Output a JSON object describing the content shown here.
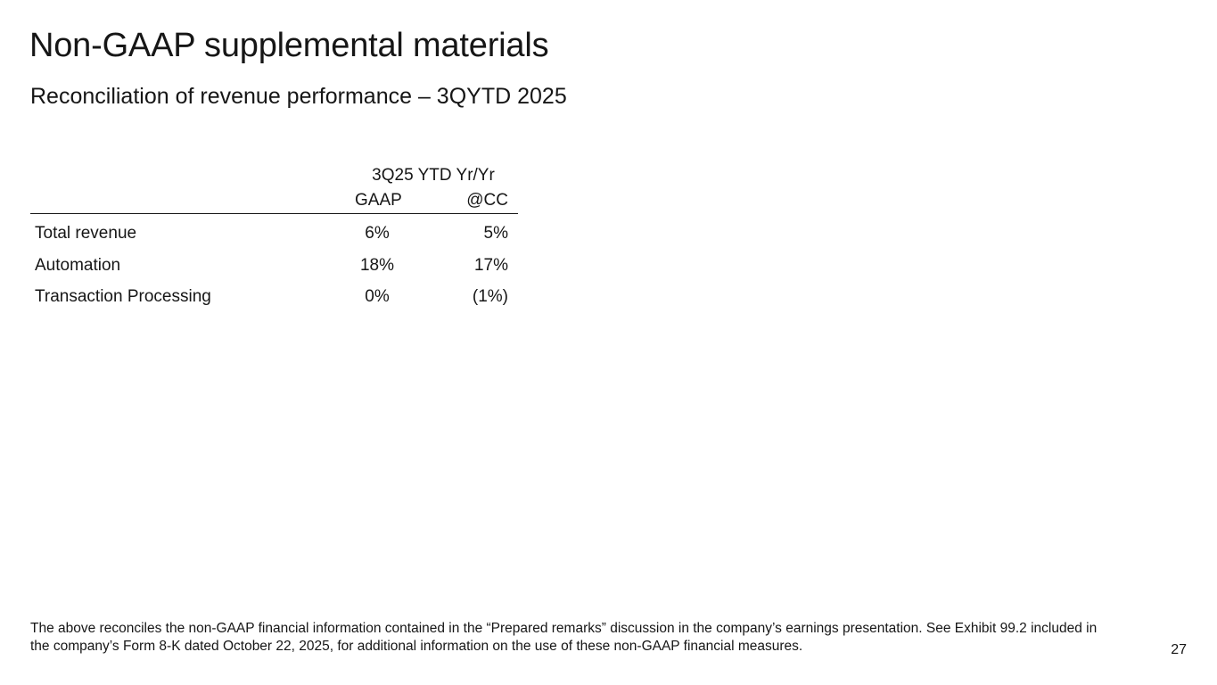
{
  "slide": {
    "title": "Non-GAAP supplemental materials",
    "subtitle": "Reconciliation of revenue performance – 3QYTD 2025",
    "page_number": "27"
  },
  "table": {
    "group_header": "3Q25 YTD Yr/Yr",
    "columns": [
      "GAAP",
      "@CC"
    ],
    "rows": [
      {
        "label": "Total revenue",
        "gaap": "6%",
        "cc": "5%"
      },
      {
        "label": "Automation",
        "gaap": "18%",
        "cc": "17%"
      },
      {
        "label": "Transaction Processing",
        "gaap": "0%",
        "cc": "(1%)"
      }
    ]
  },
  "footnote": "The above reconciles the non-GAAP financial information contained in the “Prepared remarks” discussion in the company’s earnings presentation. See Exhibit 99.2 included in the company’s Form 8-K dated October 22, 2025, for additional information on the use of these non-GAAP financial measures."
}
